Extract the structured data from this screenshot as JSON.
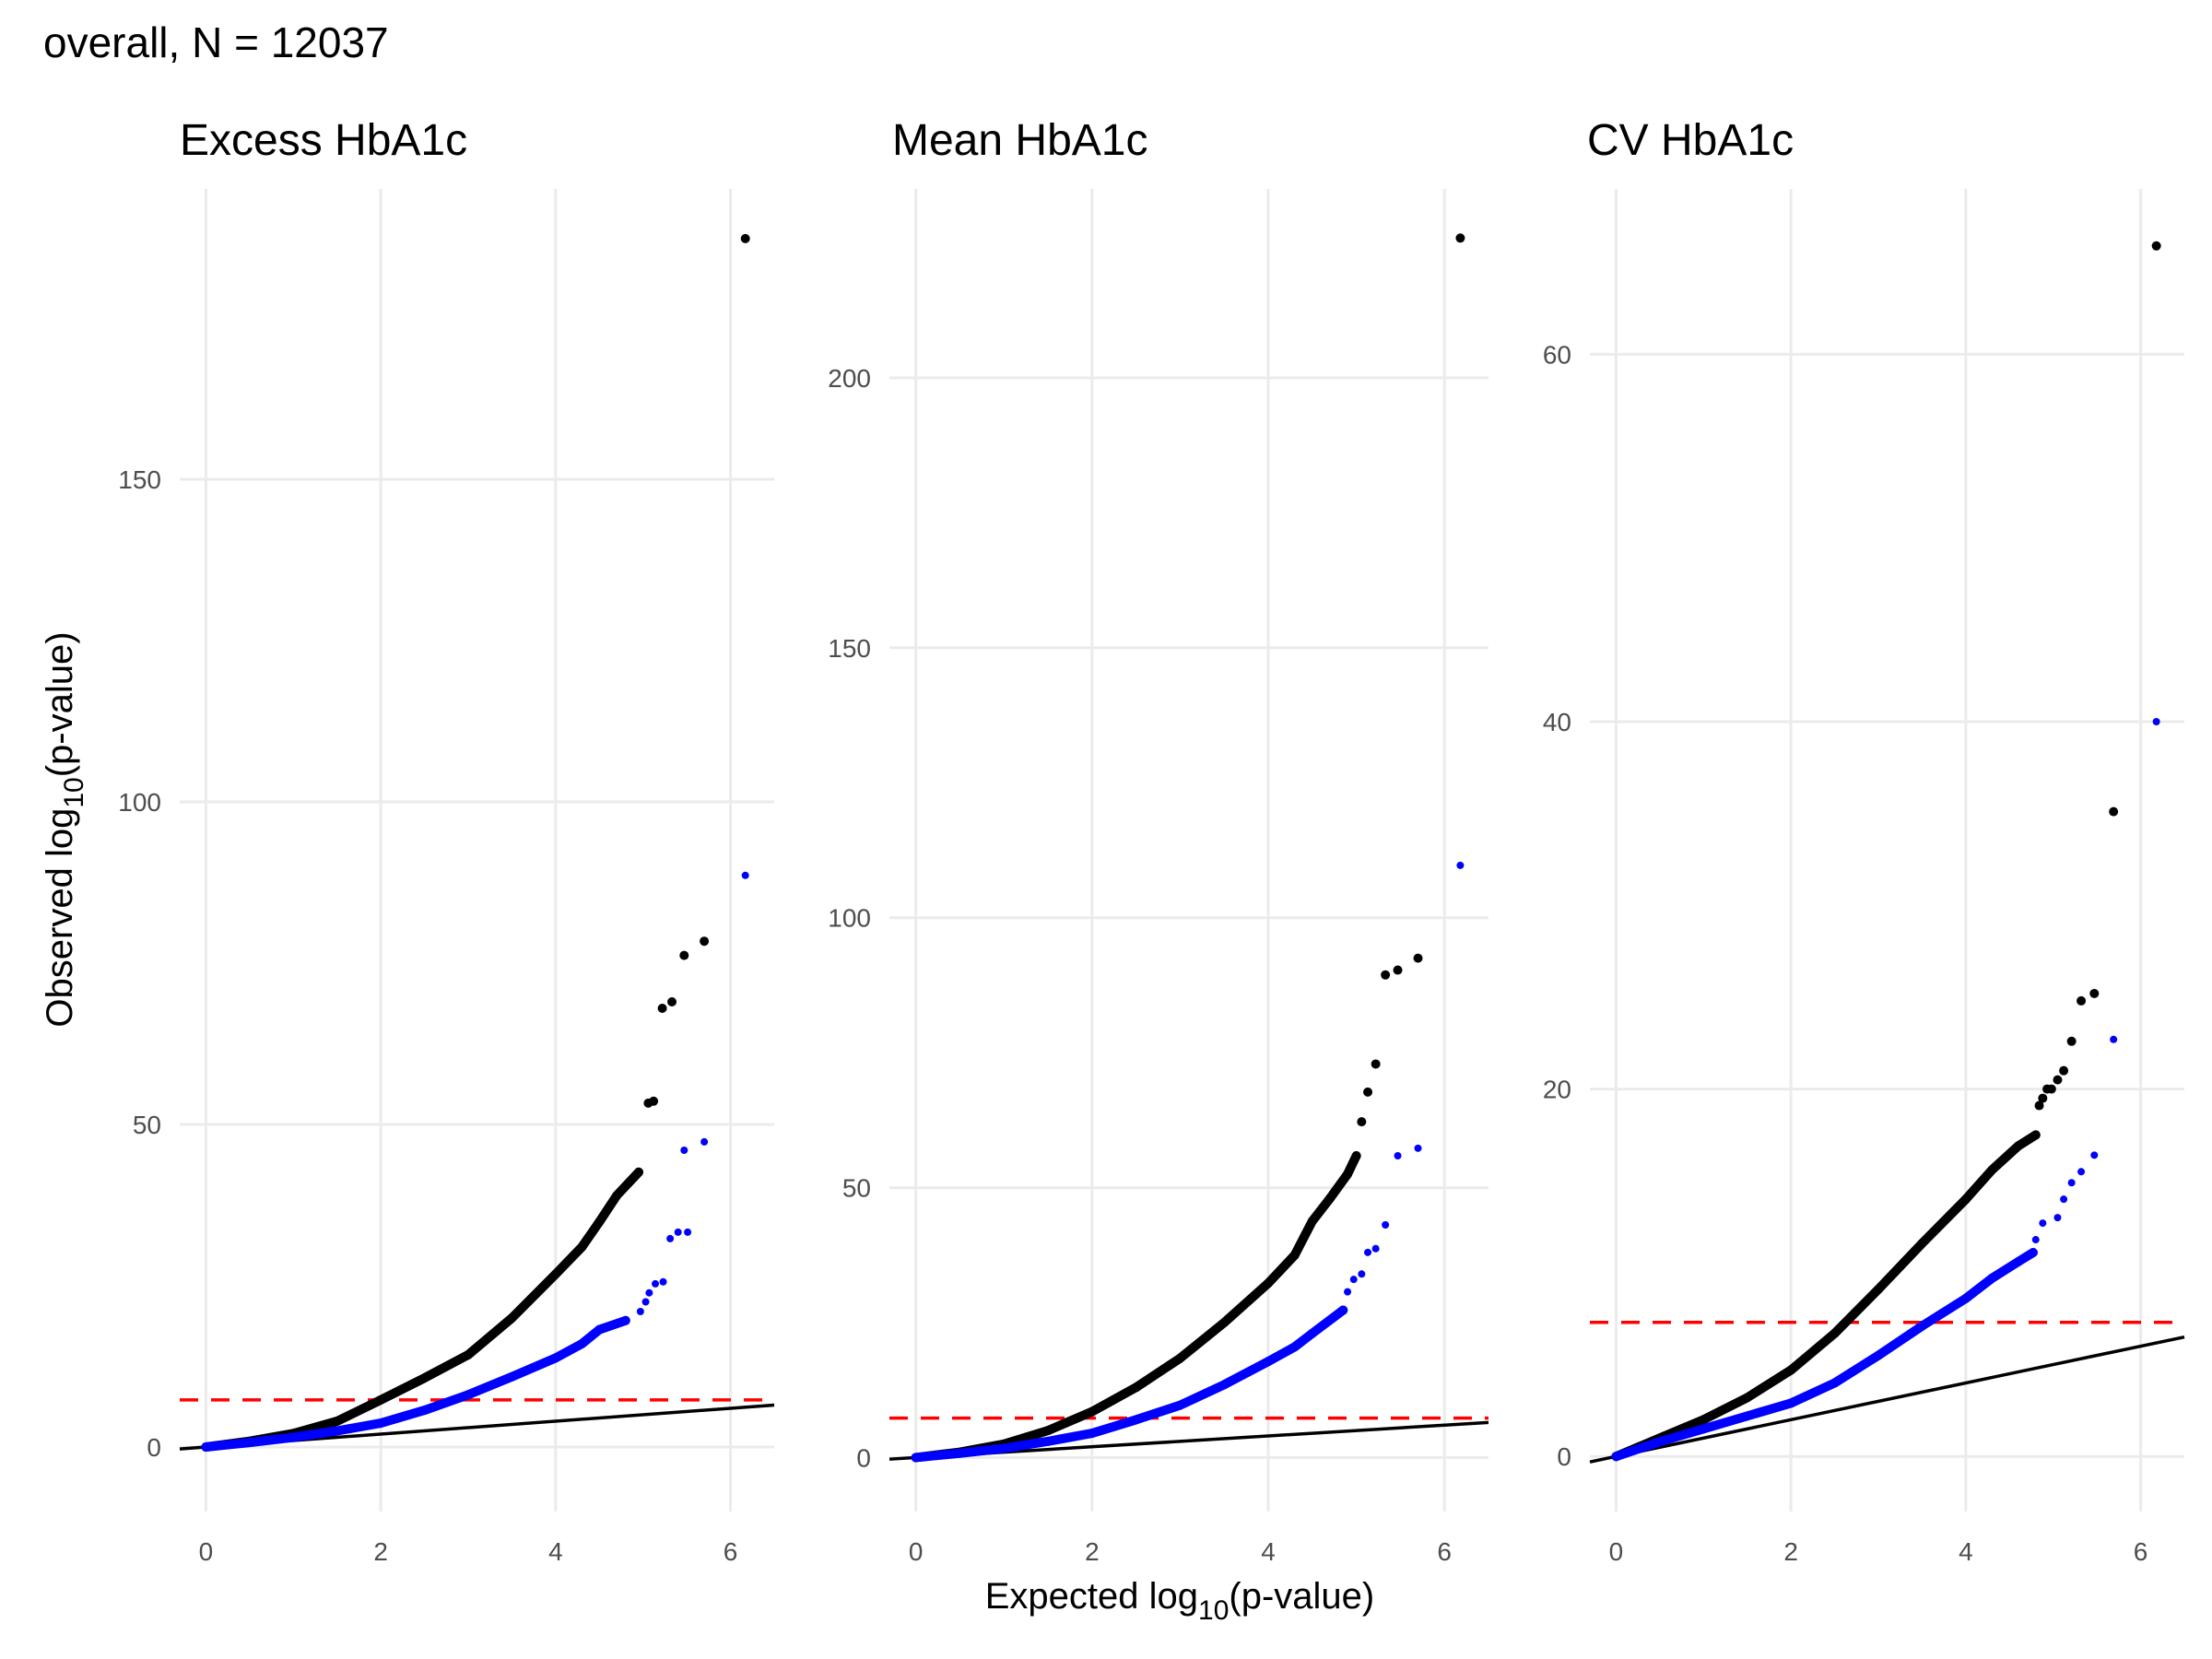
{
  "chart_data": {
    "type": "scatter",
    "title": "overall, N = 12037",
    "xlabel": "Expected log10(p-value)",
    "xlabel_parts": {
      "pre": "Expected log",
      "sub": "10",
      "post": "(p-value)"
    },
    "ylabel": "Observed log10(p-value)",
    "ylabel_parts": {
      "pre": "Observed log",
      "sub": "10",
      "post": "(p-value)"
    },
    "grid": true,
    "colors": {
      "series_a": "#000000",
      "series_b": "#0000ff",
      "threshold": "#ff0000",
      "identity": "#000000"
    },
    "threshold": 7.3,
    "panels": [
      {
        "title": "Excess HbA1c",
        "xlim": [
          -0.3,
          6.5
        ],
        "ylim": [
          -10,
          195
        ],
        "xticks": [
          0,
          2,
          4,
          6
        ],
        "yticks": [
          0,
          50,
          100,
          150
        ],
        "series": [
          {
            "name": "black",
            "color": "#000000",
            "curve": [
              [
                0,
                0
              ],
              [
                0.5,
                0.9
              ],
              [
                1,
                2.1
              ],
              [
                1.5,
                4.0
              ],
              [
                2,
                7.3
              ],
              [
                2.5,
                10.7
              ],
              [
                3,
                14.3
              ],
              [
                3.5,
                20.0
              ],
              [
                4,
                26.8
              ],
              [
                4.3,
                31.0
              ],
              [
                4.5,
                34.9
              ],
              [
                4.7,
                39.0
              ],
              [
                4.95,
                42.6
              ]
            ],
            "points": [
              [
                5.06,
                53.3
              ],
              [
                5.12,
                53.6
              ],
              [
                5.22,
                68.0
              ],
              [
                5.33,
                69.0
              ],
              [
                5.47,
                76.2
              ],
              [
                5.7,
                78.4
              ],
              [
                6.17,
                187.3
              ]
            ]
          },
          {
            "name": "blue",
            "color": "#0000ff",
            "curve": [
              [
                0,
                0
              ],
              [
                0.5,
                0.7
              ],
              [
                1,
                1.5
              ],
              [
                1.5,
                2.5
              ],
              [
                2,
                3.7
              ],
              [
                2.5,
                5.7
              ],
              [
                3,
                8.1
              ],
              [
                3.5,
                10.9
              ],
              [
                4,
                13.8
              ],
              [
                4.3,
                16.0
              ],
              [
                4.5,
                18.2
              ],
              [
                4.8,
                19.6
              ]
            ],
            "points": [
              [
                4.97,
                21.0
              ],
              [
                5.03,
                22.5
              ],
              [
                5.07,
                23.9
              ],
              [
                5.14,
                25.3
              ],
              [
                5.23,
                25.6
              ],
              [
                5.31,
                32.3
              ],
              [
                5.4,
                33.3
              ],
              [
                5.51,
                33.3
              ],
              [
                5.47,
                46.0
              ],
              [
                5.7,
                47.3
              ],
              [
                6.17,
                88.6
              ]
            ]
          }
        ]
      },
      {
        "title": "Mean HbA1c",
        "xlim": [
          -0.3,
          6.5
        ],
        "ylim": [
          -10,
          235
        ],
        "xticks": [
          0,
          2,
          4,
          6
        ],
        "yticks": [
          0,
          50,
          100,
          150,
          200
        ],
        "series": [
          {
            "name": "black",
            "color": "#000000",
            "curve": [
              [
                0,
                0
              ],
              [
                0.5,
                1.0
              ],
              [
                1,
                2.5
              ],
              [
                1.5,
                5.0
              ],
              [
                2,
                8.5
              ],
              [
                2.5,
                13.0
              ],
              [
                3,
                18.4
              ],
              [
                3.5,
                25.0
              ],
              [
                4,
                32.3
              ],
              [
                4.3,
                37.5
              ],
              [
                4.5,
                43.8
              ],
              [
                4.7,
                48.0
              ],
              [
                4.9,
                52.5
              ],
              [
                5.0,
                55.9
              ]
            ],
            "points": [
              [
                5.06,
                62.2
              ],
              [
                5.13,
                67.7
              ],
              [
                5.22,
                72.9
              ],
              [
                5.33,
                89.4
              ],
              [
                5.47,
                90.3
              ],
              [
                5.7,
                92.5
              ],
              [
                6.18,
                225.9
              ]
            ]
          },
          {
            "name": "blue",
            "color": "#0000ff",
            "curve": [
              [
                0,
                0
              ],
              [
                0.5,
                0.8
              ],
              [
                1,
                1.7
              ],
              [
                1.5,
                3.0
              ],
              [
                2,
                4.5
              ],
              [
                2.5,
                7.0
              ],
              [
                3,
                9.7
              ],
              [
                3.5,
                13.5
              ],
              [
                4,
                17.8
              ],
              [
                4.3,
                20.5
              ],
              [
                4.5,
                23.0
              ],
              [
                4.85,
                27.3
              ]
            ],
            "points": [
              [
                4.9,
                30.7
              ],
              [
                4.97,
                33.0
              ],
              [
                5.06,
                34.0
              ],
              [
                5.13,
                38.0
              ],
              [
                5.22,
                38.7
              ],
              [
                5.33,
                43.1
              ],
              [
                5.47,
                55.9
              ],
              [
                5.7,
                57.3
              ],
              [
                6.18,
                109.7
              ]
            ]
          }
        ]
      },
      {
        "title": "CV HbA1c",
        "xlim": [
          -0.3,
          6.5
        ],
        "ylim": [
          -3,
          69
        ],
        "xticks": [
          0,
          2,
          4,
          6
        ],
        "yticks": [
          0,
          20,
          40,
          60
        ],
        "series": [
          {
            "name": "black",
            "color": "#000000",
            "curve": [
              [
                0,
                0
              ],
              [
                0.5,
                1.0
              ],
              [
                1,
                2.0
              ],
              [
                1.5,
                3.2
              ],
              [
                2,
                4.7
              ],
              [
                2.5,
                6.7
              ],
              [
                3,
                9.1
              ],
              [
                3.5,
                11.6
              ],
              [
                4,
                14.0
              ],
              [
                4.3,
                15.6
              ],
              [
                4.6,
                16.9
              ],
              [
                4.8,
                17.5
              ]
            ],
            "points": [
              [
                4.84,
                19.1
              ],
              [
                4.88,
                19.5
              ],
              [
                4.93,
                20.0
              ],
              [
                4.98,
                20.0
              ],
              [
                5.05,
                20.5
              ],
              [
                5.12,
                21.0
              ],
              [
                5.21,
                22.6
              ],
              [
                5.32,
                24.8
              ],
              [
                5.47,
                25.2
              ],
              [
                5.69,
                35.1
              ],
              [
                6.18,
                65.9
              ]
            ]
          },
          {
            "name": "blue",
            "color": "#0000ff",
            "curve": [
              [
                0,
                0
              ],
              [
                0.5,
                0.8
              ],
              [
                1,
                1.5
              ],
              [
                1.5,
                2.2
              ],
              [
                2,
                2.9
              ],
              [
                2.5,
                4.0
              ],
              [
                3,
                5.5
              ],
              [
                3.5,
                7.1
              ],
              [
                4,
                8.6
              ],
              [
                4.3,
                9.7
              ],
              [
                4.6,
                10.6
              ],
              [
                4.77,
                11.1
              ]
            ],
            "points": [
              [
                4.8,
                11.8
              ],
              [
                4.88,
                12.7
              ],
              [
                5.05,
                13.0
              ],
              [
                5.12,
                14.0
              ],
              [
                5.21,
                14.9
              ],
              [
                5.32,
                15.5
              ],
              [
                5.47,
                16.4
              ],
              [
                5.69,
                22.7
              ],
              [
                6.18,
                40.0
              ]
            ]
          }
        ]
      }
    ]
  }
}
